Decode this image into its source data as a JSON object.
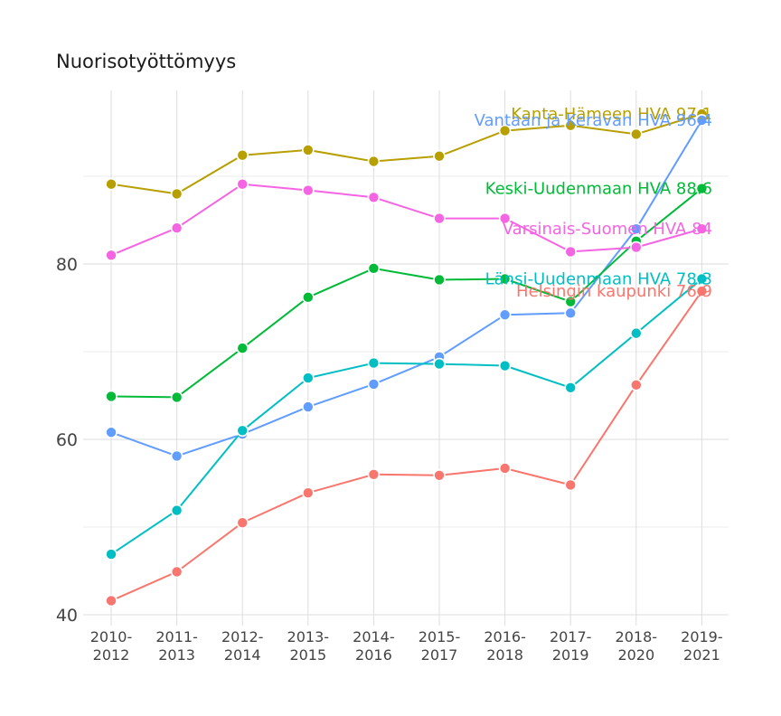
{
  "chart_data": {
    "type": "line",
    "title": "Nuorisotyöttömyys",
    "xlabel": "",
    "ylabel": "",
    "ylim": [
      40,
      99
    ],
    "yticks": [
      40,
      60,
      80
    ],
    "categories": [
      [
        "2010-",
        "2012"
      ],
      [
        "2011-",
        "2013"
      ],
      [
        "2012-",
        "2014"
      ],
      [
        "2013-",
        "2015"
      ],
      [
        "2014-",
        "2016"
      ],
      [
        "2015-",
        "2017"
      ],
      [
        "2016-",
        "2018"
      ],
      [
        "2017-",
        "2019"
      ],
      [
        "2018-",
        "2020"
      ],
      [
        "2019-",
        "2021"
      ]
    ],
    "series": [
      {
        "name": "Kanta-Hämeen HVA",
        "label": "Kanta-Hämeen HVA 97.1",
        "color": "#B79F00",
        "values": [
          89.1,
          88.0,
          92.4,
          93.0,
          91.7,
          92.3,
          95.2,
          95.8,
          94.8,
          97.1
        ]
      },
      {
        "name": "Vantaan ja Keravan HVA",
        "label": "Vantaan ja Keravan HVA 96.4",
        "color": "#619CFF",
        "values": [
          60.8,
          58.1,
          60.6,
          63.7,
          66.3,
          69.4,
          74.2,
          74.4,
          84.0,
          96.4
        ]
      },
      {
        "name": "Keski-Uudenmaan HVA",
        "label": "Keski-Uudenmaan HVA 88.6",
        "color": "#00BA38",
        "values": [
          64.9,
          64.8,
          70.4,
          76.2,
          79.5,
          78.2,
          78.3,
          75.7,
          82.6,
          88.6
        ]
      },
      {
        "name": "Varsinais-Suomen HVA",
        "label": "Varsinais-Suomen HVA 84",
        "color": "#F564E3",
        "values": [
          81.0,
          84.1,
          89.1,
          88.4,
          87.6,
          85.2,
          85.2,
          81.4,
          81.9,
          84.0
        ]
      },
      {
        "name": "Länsi-Uudenmaan HVA",
        "label": "Länsi-Uudenmaan HVA 78.3",
        "color": "#00BFC4",
        "values": [
          46.9,
          51.9,
          61.0,
          67.0,
          68.7,
          68.6,
          68.4,
          65.9,
          72.1,
          78.3
        ]
      },
      {
        "name": "Helsingin kaupunki",
        "label": "Helsingin kaupunki 76.9",
        "color": "#F8766D",
        "values": [
          41.6,
          44.9,
          50.5,
          53.9,
          56.0,
          55.9,
          56.7,
          54.8,
          66.2,
          76.9
        ]
      }
    ]
  }
}
